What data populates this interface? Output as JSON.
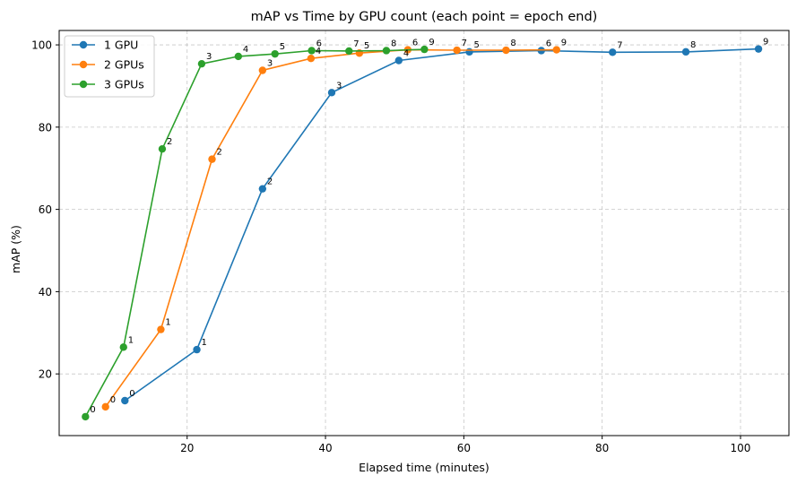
{
  "chart_data": {
    "type": "line",
    "title": "mAP vs Time by GPU count (each point = epoch end)",
    "xlabel": "Elapsed time (minutes)",
    "ylabel": "mAP (%)",
    "xlim": [
      1.5,
      107
    ],
    "ylim": [
      5,
      103.5
    ],
    "xticks": [
      20,
      40,
      60,
      80,
      100
    ],
    "yticks": [
      20,
      40,
      60,
      80,
      100
    ],
    "grid": true,
    "legend_position": "top-left",
    "series": [
      {
        "name": "1 GPU",
        "color": "#1f77b4",
        "x": [
          11.0,
          21.4,
          30.9,
          40.9,
          50.6,
          60.8,
          71.2,
          81.5,
          92.1,
          102.6
        ],
        "y": [
          13.5,
          25.9,
          65.0,
          88.4,
          96.2,
          98.3,
          98.6,
          98.2,
          98.3,
          99.0
        ],
        "epochs": [
          "0",
          "1",
          "2",
          "3",
          "4",
          "5",
          "6",
          "7",
          "8",
          "9"
        ]
      },
      {
        "name": "2 GPUs",
        "color": "#ff7f0e",
        "x": [
          8.2,
          16.2,
          23.6,
          30.9,
          37.9,
          44.9,
          51.9,
          59.0,
          66.1,
          73.4
        ],
        "y": [
          12.0,
          30.8,
          72.2,
          93.8,
          96.7,
          98.0,
          98.8,
          98.7,
          98.7,
          98.8
        ],
        "epochs": [
          "0",
          "1",
          "2",
          "3",
          "4",
          "5",
          "6",
          "7",
          "8",
          "9"
        ]
      },
      {
        "name": "3 GPUs",
        "color": "#2ca02c",
        "x": [
          5.3,
          10.8,
          16.4,
          22.1,
          27.4,
          32.7,
          38.0,
          43.4,
          48.8,
          54.3
        ],
        "y": [
          9.6,
          26.5,
          74.7,
          95.4,
          97.2,
          97.8,
          98.6,
          98.5,
          98.6,
          98.9
        ],
        "epochs": [
          "0",
          "1",
          "2",
          "3",
          "4",
          "5",
          "6",
          "7",
          "8",
          "9"
        ]
      }
    ]
  }
}
